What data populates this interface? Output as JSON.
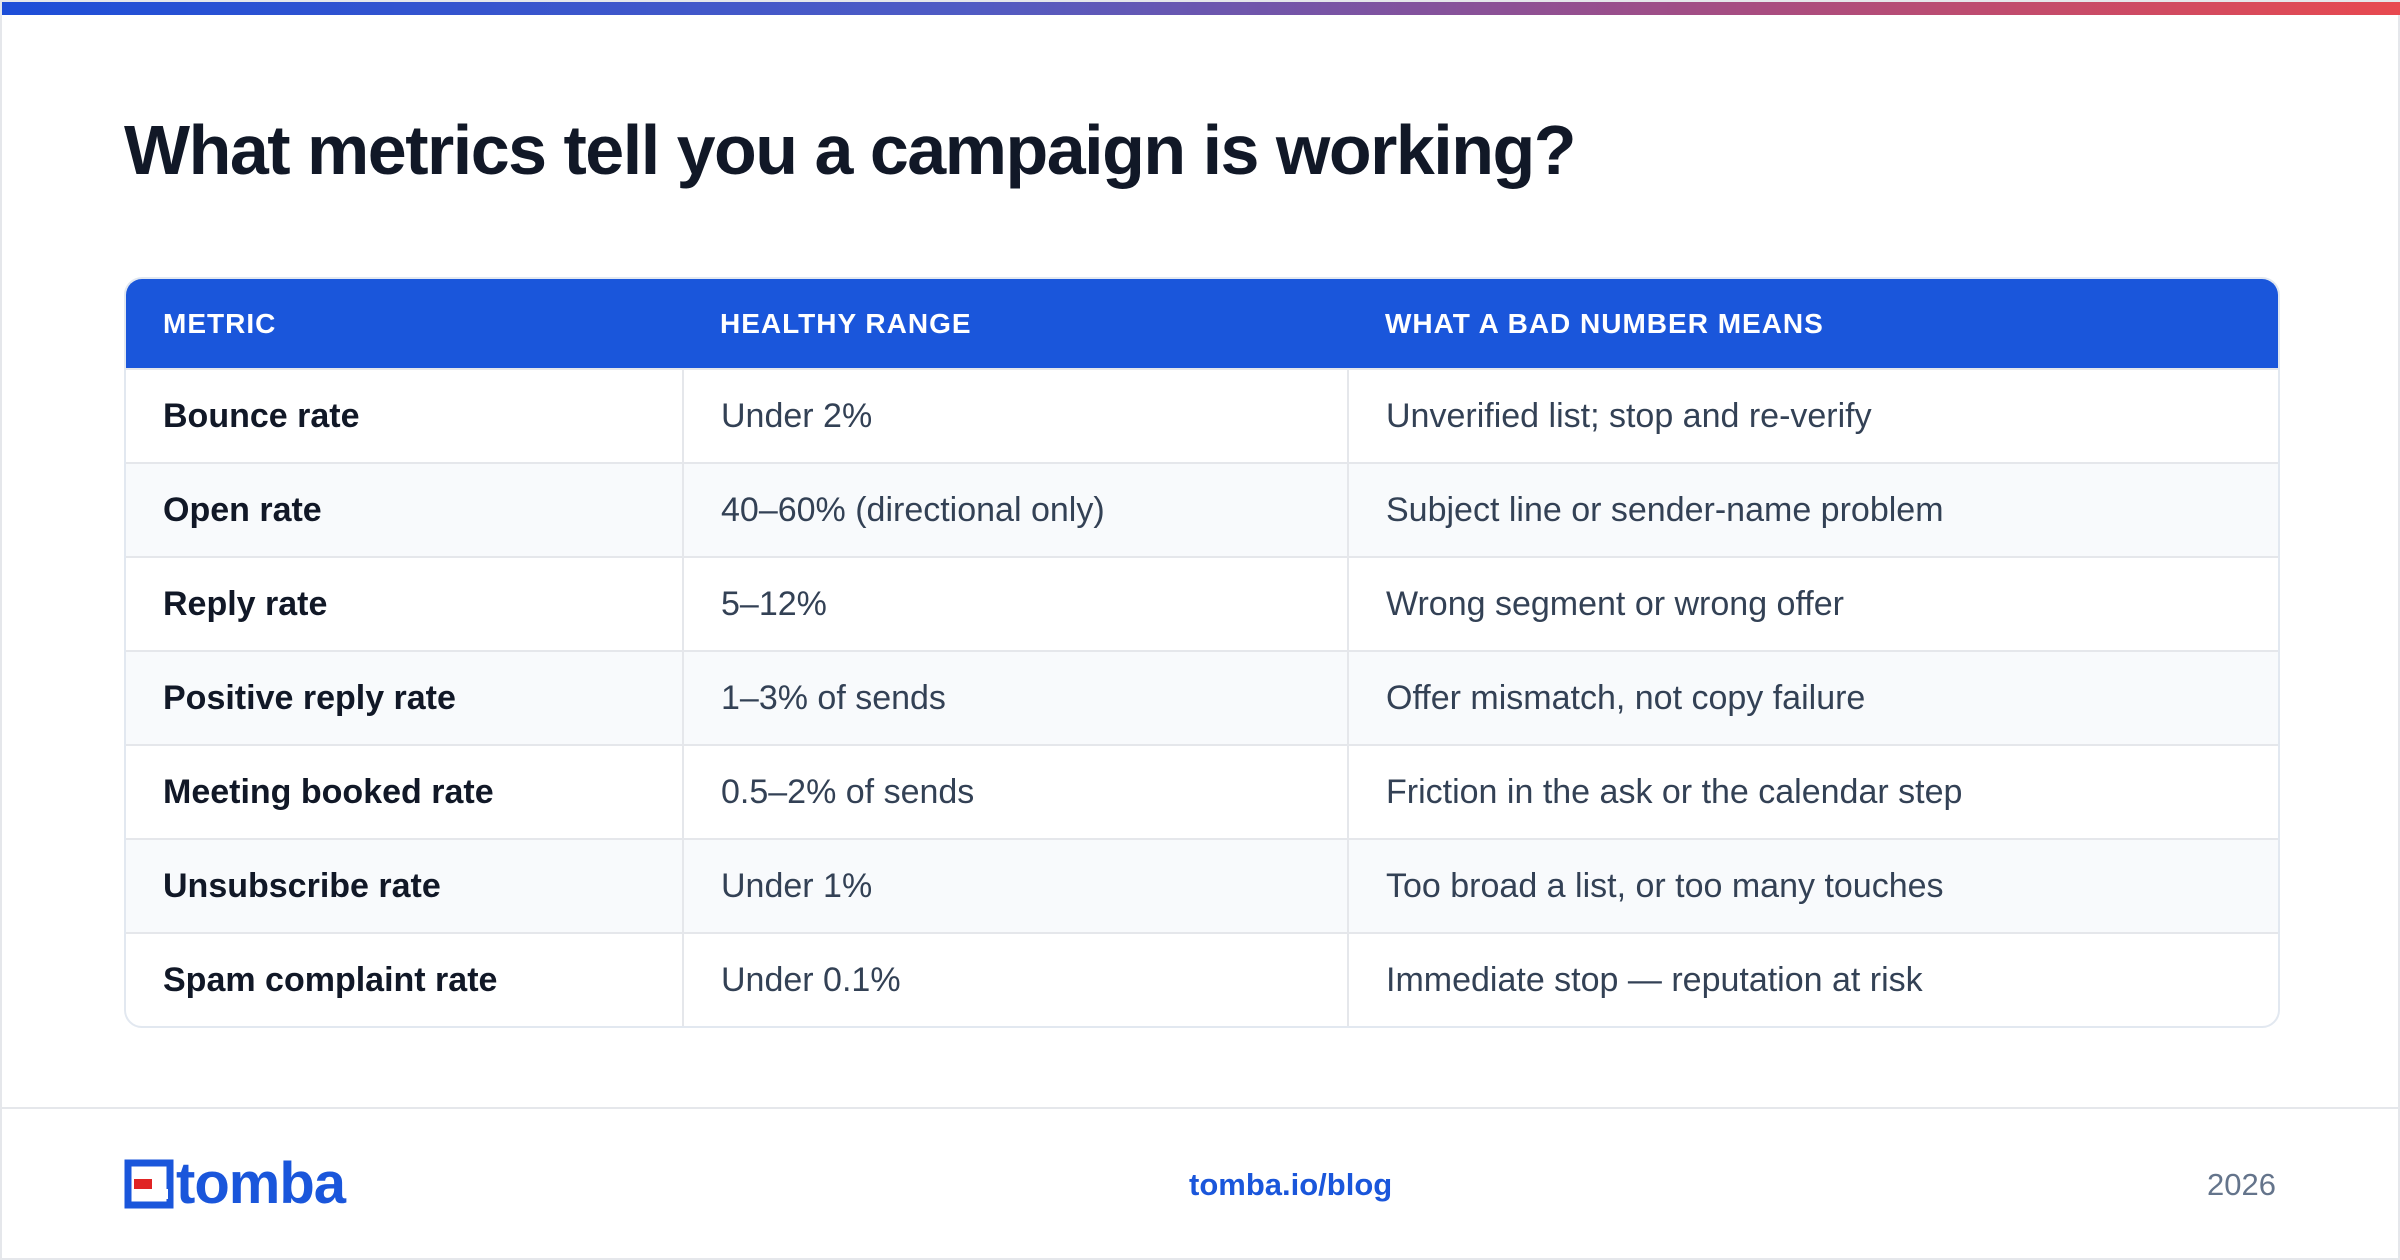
{
  "page": {
    "title": "What metrics tell you a campaign is working?",
    "accent_color": "#1a56db",
    "gradient_colors": [
      "#1d4ed8",
      "#e8494f"
    ]
  },
  "table": {
    "headers": [
      "METRIC",
      "HEALTHY RANGE",
      "WHAT A BAD NUMBER MEANS"
    ],
    "header_color": "#1a56db",
    "rows": [
      {
        "metric": "Bounce rate",
        "range": "Under 2%",
        "meaning": "Unverified list; stop and re-verify"
      },
      {
        "metric": "Open rate",
        "range": "40–60% (directional only)",
        "meaning": "Subject line or sender-name problem"
      },
      {
        "metric": "Reply rate",
        "range": "5–12%",
        "meaning": "Wrong segment or wrong offer"
      },
      {
        "metric": "Positive reply rate",
        "range": "1–3% of sends",
        "meaning": "Offer mismatch, not copy failure"
      },
      {
        "metric": "Meeting booked rate",
        "range": "0.5–2% of sends",
        "meaning": "Friction in the ask or the calendar step"
      },
      {
        "metric": "Unsubscribe rate",
        "range": "Under 1%",
        "meaning": "Too broad a list, or too many touches"
      },
      {
        "metric": "Spam complaint rate",
        "range": "Under 0.1%",
        "meaning": "Immediate stop — reputation at risk"
      }
    ]
  },
  "footer": {
    "logo_text": "tomba",
    "logo_icon": "tomba-logo-icon",
    "link": "tomba.io/blog",
    "year": "2026"
  }
}
